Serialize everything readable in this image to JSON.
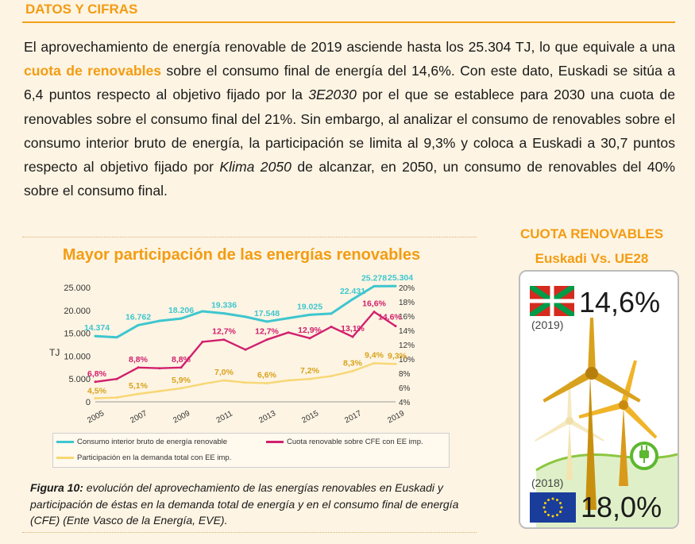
{
  "section_title": "DATOS Y CIFRAS",
  "paragraph": {
    "s1": "El aprovechamiento de energía renovable de 2019 asciende hasta los 25.304 TJ, lo que equivale a una ",
    "highlight": "cuota de renovables",
    "s2": " sobre el consumo final de energía del 14,6%. Con este dato, Euskadi se sitúa a 6,4 puntos respecto al objetivo fijado por la ",
    "plan1": "3E2030",
    "s3": " por el que se establece para 2030 una cuota de renovables sobre el consumo final del 21%. Sin embargo, al analizar el consumo de renovables sobre el consumo interior bruto de energía, la participación se limita al 9,3% y coloca a Euskadi a 30,7 puntos respecto al objetivo fijado por ",
    "plan2": "Klima 2050",
    "s4": " de alcanzar, en 2050, un consumo de renovables del 40% sobre el consumo final."
  },
  "figure": {
    "caption_label": "Figura 10:",
    "caption_text": " evolución del aprovechamiento de las energías renovables en Euskadi y participación de éstas en la demanda total de energía y en el consumo final de energía (CFE) (Ente Vasco de la Energía, EVE)."
  },
  "side_panel": {
    "title_line1": "CUOTA RENOVABLES",
    "title_line2": "Euskadi Vs. UE28",
    "euskadi_value": "14,6%",
    "euskadi_year": "(2019)",
    "eu_value": "18,0%",
    "eu_year": "(2018)"
  },
  "chart_data": {
    "type": "line",
    "title": "Mayor participación de las energías renovables",
    "ylabel": "TJ",
    "x": [
      2005,
      2006,
      2007,
      2008,
      2009,
      2010,
      2011,
      2012,
      2013,
      2014,
      2015,
      2016,
      2017,
      2018,
      2019
    ],
    "x_tick_labels": [
      "2005",
      "2007",
      "2009",
      "2011",
      "2013",
      "2015",
      "2017",
      "2019"
    ],
    "ylim_left": [
      0,
      25000
    ],
    "y_left_ticks": [
      "0",
      "5.000",
      "10.000",
      "15.000",
      "20.000",
      "25.000"
    ],
    "ylim_right": [
      4,
      20
    ],
    "y_right_ticks": [
      "4%",
      "6%",
      "8%",
      "10%",
      "12%",
      "14%",
      "16%",
      "18%",
      "20%"
    ],
    "series": [
      {
        "name": "Consumo interior bruto de energía renovable",
        "axis": "left",
        "color": "#3ec6cf",
        "values": [
          14374,
          14100,
          16762,
          17700,
          18206,
          19800,
          19336,
          18600,
          17548,
          18300,
          19025,
          19300,
          22431,
          25278,
          25304
        ],
        "labels": {
          "0": "14.374",
          "2": "16.762",
          "4": "18.206",
          "6": "19.336",
          "8": "17.548",
          "10": "19.025",
          "12": "22.431",
          "13": "25.278",
          "14": "25.304"
        }
      },
      {
        "name": "Cuota renovable sobre CFE con EE imp.",
        "axis": "right",
        "color": "#d1206e",
        "values": [
          6.8,
          7.2,
          8.8,
          8.7,
          8.8,
          12.4,
          12.7,
          11.3,
          12.7,
          13.7,
          12.9,
          14.5,
          13.1,
          16.6,
          14.6
        ],
        "labels": {
          "0": "6,8%",
          "2": "8,8%",
          "4": "8,8%",
          "6": "12,7%",
          "8": "12,7%",
          "10": "12,9%",
          "12": "13,1%",
          "13": "16,6%",
          "14": "14,6%"
        }
      },
      {
        "name": "Participación en la demanda total con EE imp.",
        "axis": "right",
        "color": "#f7d774",
        "values": [
          4.5,
          4.6,
          5.1,
          5.5,
          5.9,
          6.5,
          7.0,
          6.7,
          6.6,
          7.0,
          7.2,
          7.6,
          8.3,
          9.4,
          9.3
        ],
        "labels": {
          "0": "4,5%",
          "2": "5,1%",
          "4": "5,9%",
          "6": "7,0%",
          "8": "6,6%",
          "10": "7,2%",
          "12": "8,3%",
          "13": "9,4%",
          "14": "9,3%"
        }
      }
    ]
  }
}
